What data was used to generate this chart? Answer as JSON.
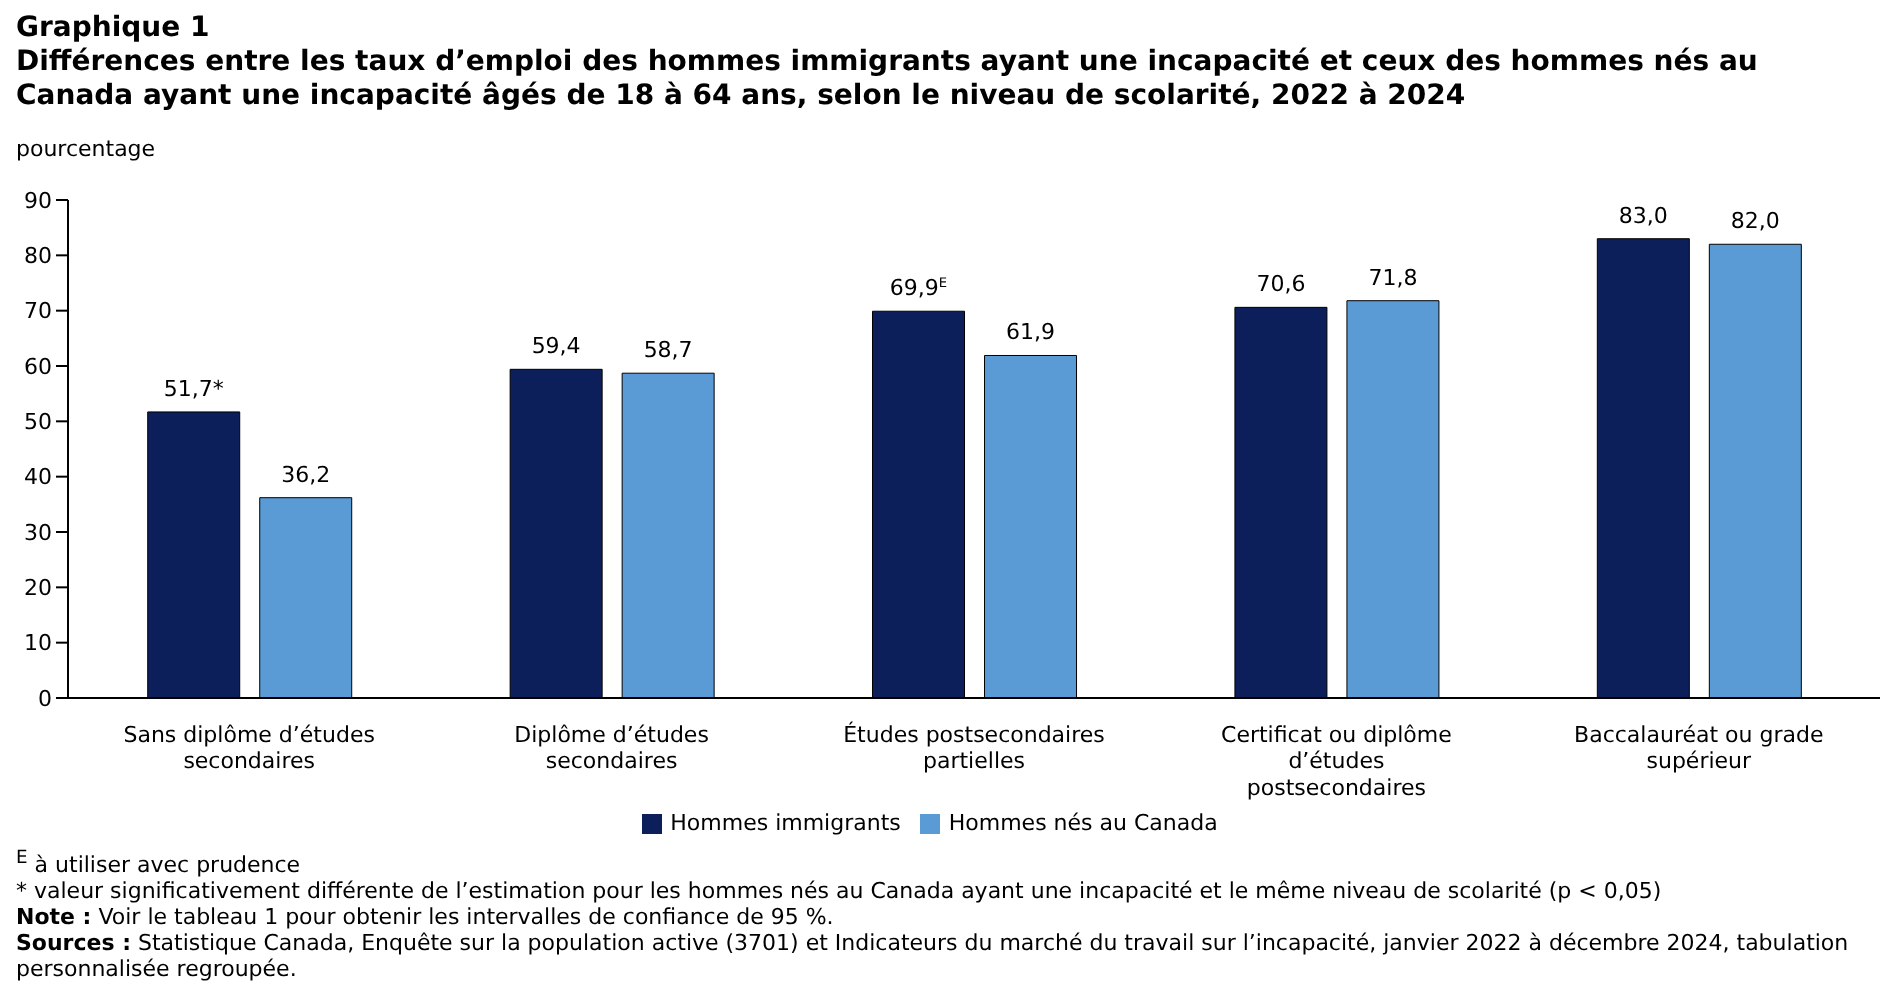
{
  "chart_data": {
    "type": "bar",
    "title": "Graphique 1",
    "subtitle": "Différences entre les taux d’emploi des hommes immigrants ayant une incapacité et ceux des hommes nés au Canada ayant une incapacité âgés de 18 à 64 ans, selon le niveau de scolarité, 2022 à 2024",
    "ylabel": "pourcentage",
    "categories": [
      "Sans diplôme d’études secondaires",
      "Diplôme d’études secondaires",
      "Études postsecondaires partielles",
      "Certificat ou diplôme d’études postsecondaires",
      "Baccalauréat ou grade supérieur"
    ],
    "series": [
      {
        "name": "Hommes immigrants",
        "color": "#0c1f5b",
        "values": [
          51.7,
          59.4,
          69.9,
          70.6,
          83.0
        ],
        "value_labels": [
          "51,7*",
          "59,4",
          "69,9$^{E}$",
          "70,6",
          "83,0"
        ]
      },
      {
        "name": "Hommes nés au Canada",
        "color": "#5b9bd5",
        "values": [
          36.2,
          58.7,
          61.9,
          71.8,
          82.0
        ],
        "value_labels": [
          "36,2",
          "58,7",
          "61,9",
          "71,8",
          "82,0"
        ]
      }
    ],
    "ylim": [
      0,
      90
    ],
    "yticks": [
      0,
      10,
      20,
      30,
      40,
      50,
      60,
      70,
      80,
      90
    ],
    "grid": false,
    "legend": "bottom",
    "annotations": [
      "$^{E}$ à utiliser avec prudence",
      "* valeur significativement différente de l’estimation pour les hommes nés au Canada ayant une incapacité et le même niveau de scolarité (p < 0,05)",
      "Note : Voir le tableau 1 pour obtenir les intervalles de confiance de 95 %.",
      "Sources : Statistique Canada, Enquête sur la population active (3701) et Indicateurs du marché du travail sur l’incapacité, janvier 2022 à décembre 2024, tabulation personnalisée regroupée."
    ]
  }
}
